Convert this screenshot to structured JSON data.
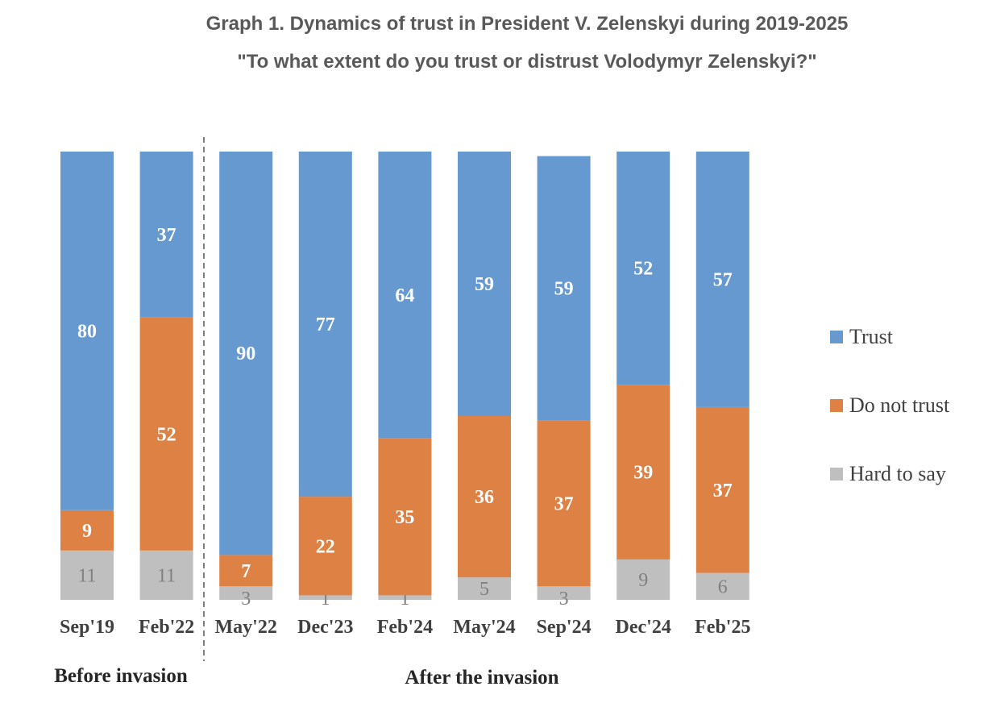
{
  "chart_data": {
    "type": "bar",
    "stacked": true,
    "normalized_100": true,
    "title": "Graph 1. Dynamics of trust in President V. Zelenskyi during 2019-2025",
    "subtitle": "\"To what extent do you trust or distrust Volodymyr Zelenskyi?\"",
    "categories": [
      "Sep'19",
      "Feb'22",
      "May'22",
      "Dec'23",
      "Feb'24",
      "May'24",
      "Sep'24",
      "Dec'24",
      "Feb'25"
    ],
    "series": [
      {
        "name": "Hard to say",
        "color": "#bfbfbf",
        "label_color": "#808080",
        "values": [
          11,
          11,
          3,
          1,
          1,
          5,
          3,
          9,
          6
        ]
      },
      {
        "name": "Do not trust",
        "color": "#dd8145",
        "label_color": "#ffffff",
        "values": [
          9,
          52,
          7,
          22,
          35,
          36,
          37,
          39,
          37
        ]
      },
      {
        "name": "Trust",
        "color": "#6699d0",
        "label_color": "#ffffff",
        "values": [
          80,
          37,
          90,
          77,
          64,
          59,
          59,
          52,
          57
        ]
      }
    ],
    "legend_order": [
      "Trust",
      "Do not trust",
      "Hard to say"
    ],
    "legend_position": "right",
    "grid": false,
    "ylim": [
      0,
      100
    ],
    "periods": [
      {
        "label": "Before invasion",
        "categories": [
          "Sep'19",
          "Feb'22"
        ]
      },
      {
        "label": "After the invasion",
        "categories": [
          "May'22",
          "Dec'23",
          "Feb'24",
          "May'24",
          "Sep'24",
          "Dec'24",
          "Feb'25"
        ]
      }
    ],
    "divider_after_category": "Feb'22"
  }
}
